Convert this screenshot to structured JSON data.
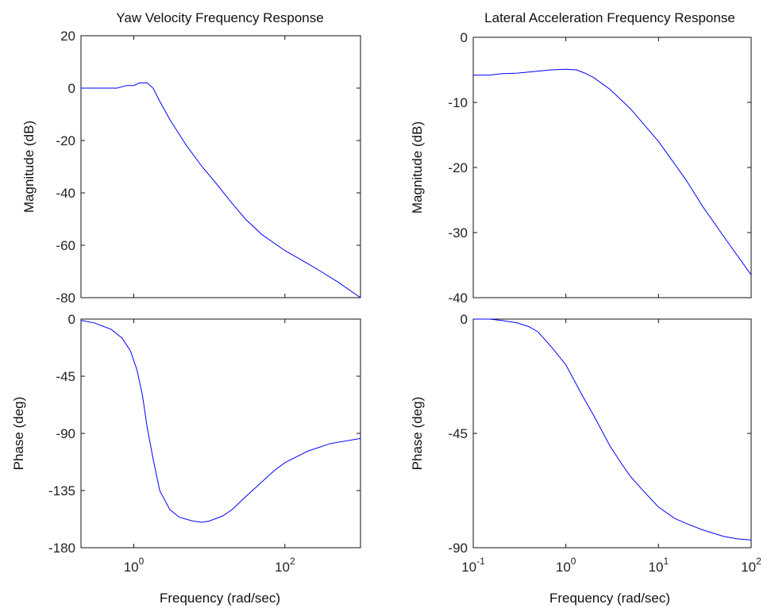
{
  "chart_data": [
    {
      "type": "line",
      "id": "yaw",
      "title": "Yaw Velocity Frequency Response",
      "xlabel": "Frequency  (rad/sec)",
      "xscale": "log",
      "xlim": [
        0.2,
        1000
      ],
      "x_tick_labels": [
        {
          "value": 1,
          "base": "10",
          "exp": "0"
        },
        {
          "value": 100,
          "base": "10",
          "exp": "2"
        }
      ],
      "magnitude": {
        "ylabel": "Magnitude (dB)",
        "ylim": [
          -80,
          20
        ],
        "yticks": [
          "20",
          "0",
          "-20",
          "-40",
          "-60",
          "-80"
        ],
        "x": [
          0.2,
          0.3,
          0.5,
          0.6,
          0.8,
          1.0,
          1.2,
          1.5,
          1.8,
          2.2,
          3.0,
          5.0,
          8.0,
          12,
          20,
          30,
          50,
          100,
          200,
          300,
          500,
          1000
        ],
        "y": [
          0,
          0,
          0,
          0,
          1,
          1,
          2,
          2,
          0,
          -5,
          -12,
          -22,
          -30,
          -36,
          -44,
          -50,
          -56,
          -62,
          -67,
          -70,
          -74,
          -80
        ]
      },
      "phase": {
        "ylabel": "Phase (deg)",
        "ylim": [
          -180,
          0
        ],
        "yticks": [
          "0",
          "-45",
          "-90",
          "-135",
          "-180"
        ],
        "x": [
          0.2,
          0.3,
          0.5,
          0.7,
          0.9,
          1.1,
          1.3,
          1.5,
          1.8,
          2.2,
          3.0,
          4.0,
          6.0,
          8.0,
          10,
          15,
          20,
          30,
          50,
          70,
          100,
          200,
          400,
          1000
        ],
        "y": [
          -1,
          -3,
          -8,
          -15,
          -25,
          -40,
          -60,
          -85,
          -110,
          -135,
          -150,
          -156,
          -159,
          -160,
          -159,
          -155,
          -150,
          -140,
          -128,
          -120,
          -113,
          -104,
          -98,
          -94
        ]
      },
      "grid": false
    },
    {
      "type": "line",
      "id": "lateral",
      "title": "Lateral Acceleration Frequency Response",
      "xlabel": "Frequency  (rad/sec)",
      "xscale": "log",
      "xlim": [
        0.1,
        100
      ],
      "x_tick_labels": [
        {
          "value": 0.1,
          "base": "10",
          "exp": "-1"
        },
        {
          "value": 1,
          "base": "10",
          "exp": "0"
        },
        {
          "value": 10,
          "base": "10",
          "exp": "1"
        },
        {
          "value": 100,
          "base": "10",
          "exp": "2"
        }
      ],
      "magnitude": {
        "ylabel": "Magnitude (dB)",
        "ylim": [
          -40,
          0
        ],
        "yticks": [
          "0",
          "-10",
          "-20",
          "-30",
          "-40"
        ],
        "x": [
          0.1,
          0.15,
          0.2,
          0.3,
          0.5,
          0.7,
          1.0,
          1.3,
          1.6,
          2.0,
          3.0,
          5.0,
          10,
          15,
          20,
          30,
          50,
          100
        ],
        "y": [
          -5.8,
          -5.8,
          -5.6,
          -5.5,
          -5.2,
          -5.0,
          -4.9,
          -5.0,
          -5.5,
          -6.2,
          -8.0,
          -11.0,
          -16.0,
          -19.5,
          -22.0,
          -26.0,
          -30.5,
          -36.5
        ]
      },
      "phase": {
        "ylabel": "Phase (deg)",
        "ylim": [
          -90,
          0
        ],
        "yticks": [
          "0",
          "-45",
          "-90"
        ],
        "x": [
          0.1,
          0.15,
          0.2,
          0.3,
          0.4,
          0.5,
          0.7,
          1.0,
          1.5,
          2.0,
          3.0,
          4.0,
          5.0,
          7.0,
          10,
          15,
          20,
          30,
          50,
          70,
          100
        ],
        "y": [
          0,
          0,
          -0.5,
          -1.5,
          -3,
          -5,
          -11,
          -18,
          -30,
          -38,
          -50,
          -57,
          -62,
          -68,
          -74,
          -78.5,
          -80.5,
          -83,
          -85.5,
          -86.5,
          -87
        ]
      },
      "grid": false
    }
  ]
}
